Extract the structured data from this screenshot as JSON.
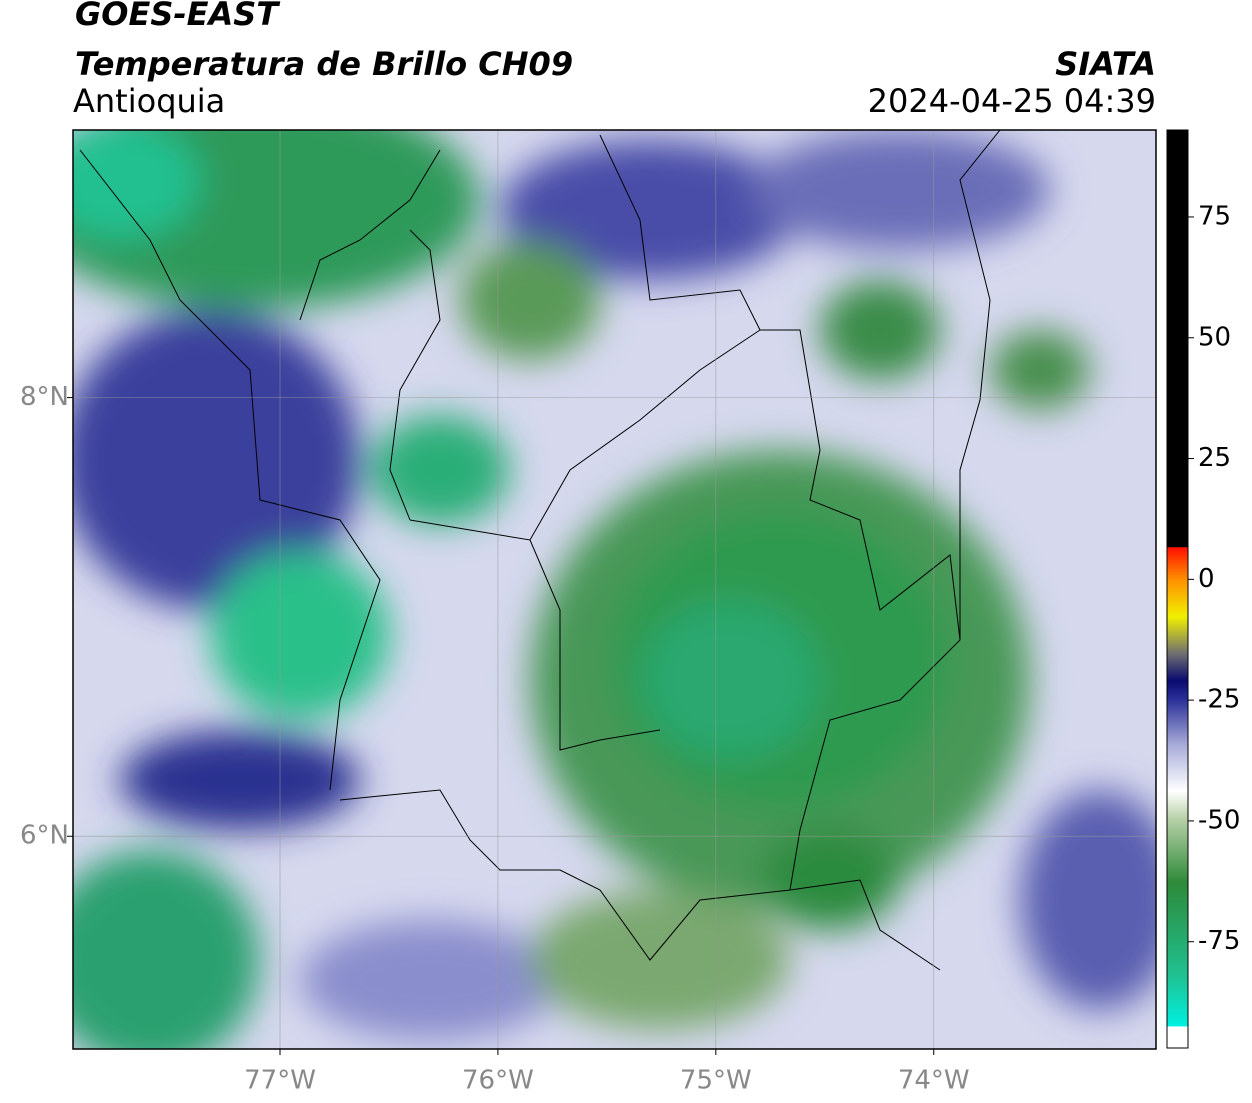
{
  "header": {
    "title": "GOES-EAST",
    "subtitle": "Temperatura de Brillo CH09",
    "region": "Antioquia",
    "source": "SIATA",
    "datetime": "2024-04-25 04:39"
  },
  "map": {
    "xlim": [
      -77.95,
      -72.98
    ],
    "ylim": [
      5.03,
      9.22
    ],
    "grid": true,
    "xticks": [
      {
        "value": -77,
        "label": "77°W"
      },
      {
        "value": -76,
        "label": "76°W"
      },
      {
        "value": -75,
        "label": "75°W"
      },
      {
        "value": -74,
        "label": "74°W"
      }
    ],
    "yticks": [
      {
        "value": 6,
        "label": "6°N"
      },
      {
        "value": 8,
        "label": "8°N"
      }
    ]
  },
  "colorbar": {
    "lim": [
      -97,
      93
    ],
    "ticks": [
      -75,
      -50,
      -25,
      0,
      25,
      50,
      75
    ]
  }
}
